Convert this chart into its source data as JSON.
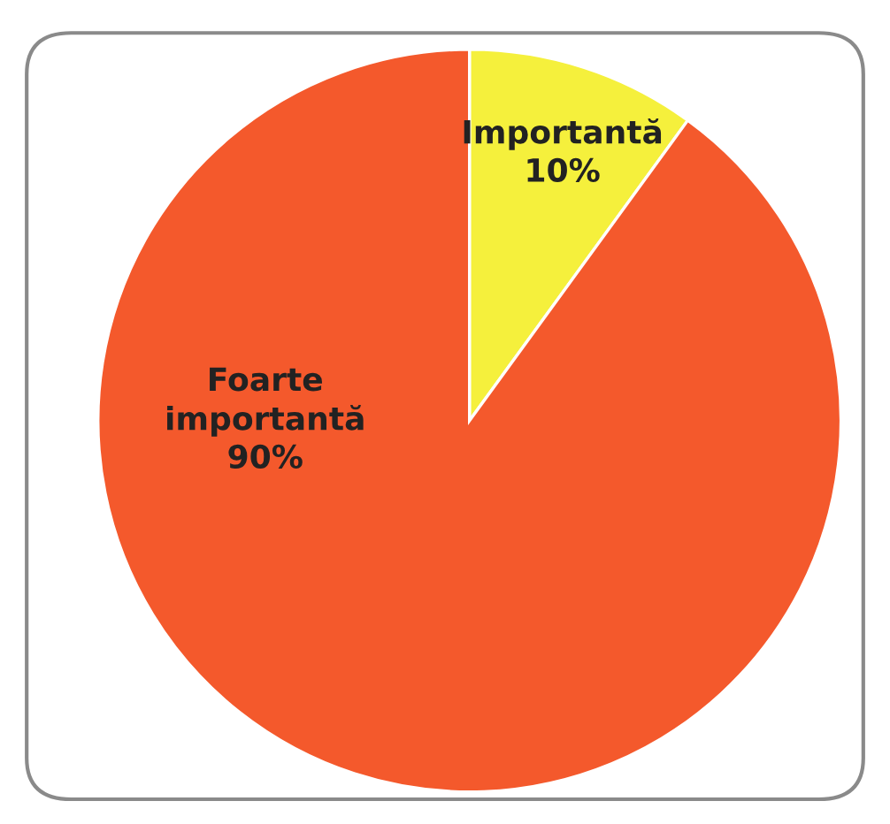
{
  "chart_data": {
    "type": "pie",
    "categories": [
      "Importantă",
      "Foarte importantă"
    ],
    "values": [
      10,
      90
    ],
    "colors": [
      "#f5f03c",
      "#f4592c"
    ],
    "value_labels": [
      "10%",
      "90%"
    ],
    "legend": false
  }
}
